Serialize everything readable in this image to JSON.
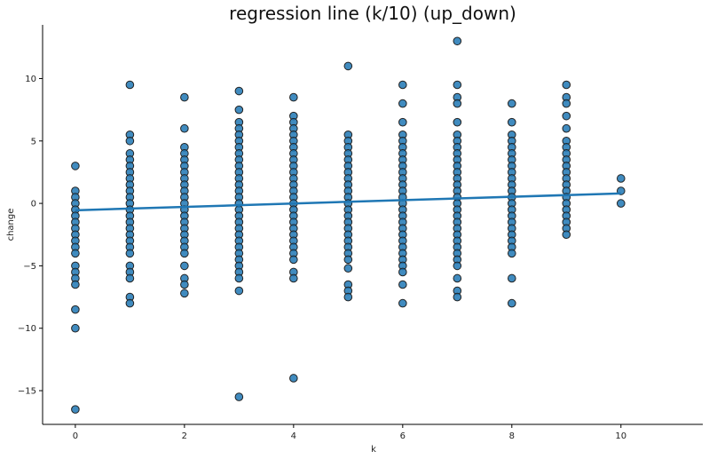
{
  "chart_data": {
    "type": "scatter",
    "title": "regression line (k/10) (up_down)",
    "xlabel": "k",
    "ylabel": "change",
    "xlim": [
      -0.6,
      11.5
    ],
    "ylim": [
      -17.7,
      14.3
    ],
    "x_ticks": [
      0,
      2,
      4,
      6,
      8,
      10
    ],
    "y_ticks": [
      -15,
      -10,
      -5,
      0,
      5,
      10
    ],
    "grid": false,
    "point_color": "#1f77b4",
    "point_edge_color": "#222222",
    "line_color": "#1f77b4",
    "regression_line": {
      "x": [
        0,
        10
      ],
      "y": [
        -0.55,
        0.8
      ]
    },
    "points": [
      {
        "x": 0,
        "y": [
          3,
          1,
          0.5,
          0,
          -0.5,
          -1,
          -1.5,
          -2,
          -2.5,
          -3,
          -3.5,
          -4,
          -5,
          -5.5,
          -6,
          -6.5,
          -8.5,
          -10,
          -16.5
        ]
      },
      {
        "x": 1,
        "y": [
          9.5,
          5.5,
          5,
          4,
          3.5,
          3,
          2.5,
          2,
          1.5,
          1,
          0.5,
          0,
          -0.5,
          -1,
          -1.5,
          -2,
          -2.5,
          -3,
          -3.5,
          -4,
          -5,
          -5.5,
          -6,
          -7.5,
          -8
        ]
      },
      {
        "x": 2,
        "y": [
          8.5,
          6,
          4.5,
          4,
          3.5,
          3,
          2.5,
          2,
          1.5,
          1,
          0.5,
          0,
          -0.5,
          -1,
          -1.5,
          -2,
          -2.5,
          -3,
          -3.5,
          -4,
          -5,
          -6,
          -6.5,
          -7.2
        ]
      },
      {
        "x": 3,
        "y": [
          9,
          7.5,
          6.5,
          6,
          5.5,
          5,
          4.5,
          4,
          3.5,
          3,
          2.5,
          2,
          1.5,
          1,
          0.5,
          0,
          -0.5,
          -1,
          -1.5,
          -2,
          -2.5,
          -3,
          -3.5,
          -4,
          -4.5,
          -5,
          -5.5,
          -6,
          -7,
          -15.5
        ]
      },
      {
        "x": 4,
        "y": [
          8.5,
          7,
          6.5,
          6,
          5.5,
          5,
          4.5,
          4,
          3.5,
          3,
          2.5,
          2,
          1.5,
          1,
          0.5,
          0,
          -0.5,
          -1,
          -1.5,
          -2,
          -2.5,
          -3,
          -3.5,
          -4,
          -4.5,
          -5.5,
          -6,
          -14
        ]
      },
      {
        "x": 5,
        "y": [
          11,
          5.5,
          5,
          4.5,
          4,
          3.5,
          3,
          2.5,
          2,
          1.5,
          1,
          0.5,
          0,
          -0.5,
          -1,
          -1.5,
          -2,
          -2.5,
          -3,
          -3.5,
          -4,
          -4.5,
          -5.2,
          -6.5,
          -7,
          -7.5
        ]
      },
      {
        "x": 6,
        "y": [
          9.5,
          8,
          6.5,
          5.5,
          5,
          4.5,
          4,
          3.5,
          3,
          2.5,
          2,
          1.5,
          1,
          0.5,
          0,
          -0.5,
          -1,
          -1.5,
          -2,
          -2.5,
          -3,
          -3.5,
          -4,
          -4.5,
          -5,
          -5.5,
          -6.5,
          -8
        ]
      },
      {
        "x": 7,
        "y": [
          13,
          9.5,
          8.5,
          8,
          6.5,
          5.5,
          5,
          4.5,
          4,
          3.5,
          3,
          2.5,
          2,
          1.5,
          1,
          0.5,
          0,
          -0.5,
          -1,
          -1.5,
          -2,
          -2.5,
          -3,
          -3.5,
          -4,
          -4.5,
          -5,
          -6,
          -7,
          -7.5
        ]
      },
      {
        "x": 8,
        "y": [
          8,
          6.5,
          5.5,
          5,
          4.5,
          4,
          3.5,
          3,
          2.5,
          2,
          1.5,
          1,
          0.5,
          0,
          -0.5,
          -1,
          -1.5,
          -2,
          -2.5,
          -3,
          -3.5,
          -4,
          -6,
          -8
        ]
      },
      {
        "x": 9,
        "y": [
          9.5,
          8.5,
          8,
          7,
          6,
          5,
          4.5,
          4,
          3.5,
          3,
          2.5,
          2,
          1.5,
          1,
          0.5,
          0,
          -0.5,
          -1,
          -1.5,
          -2,
          -2.5
        ]
      },
      {
        "x": 10,
        "y": [
          2,
          1,
          0
        ]
      }
    ]
  }
}
